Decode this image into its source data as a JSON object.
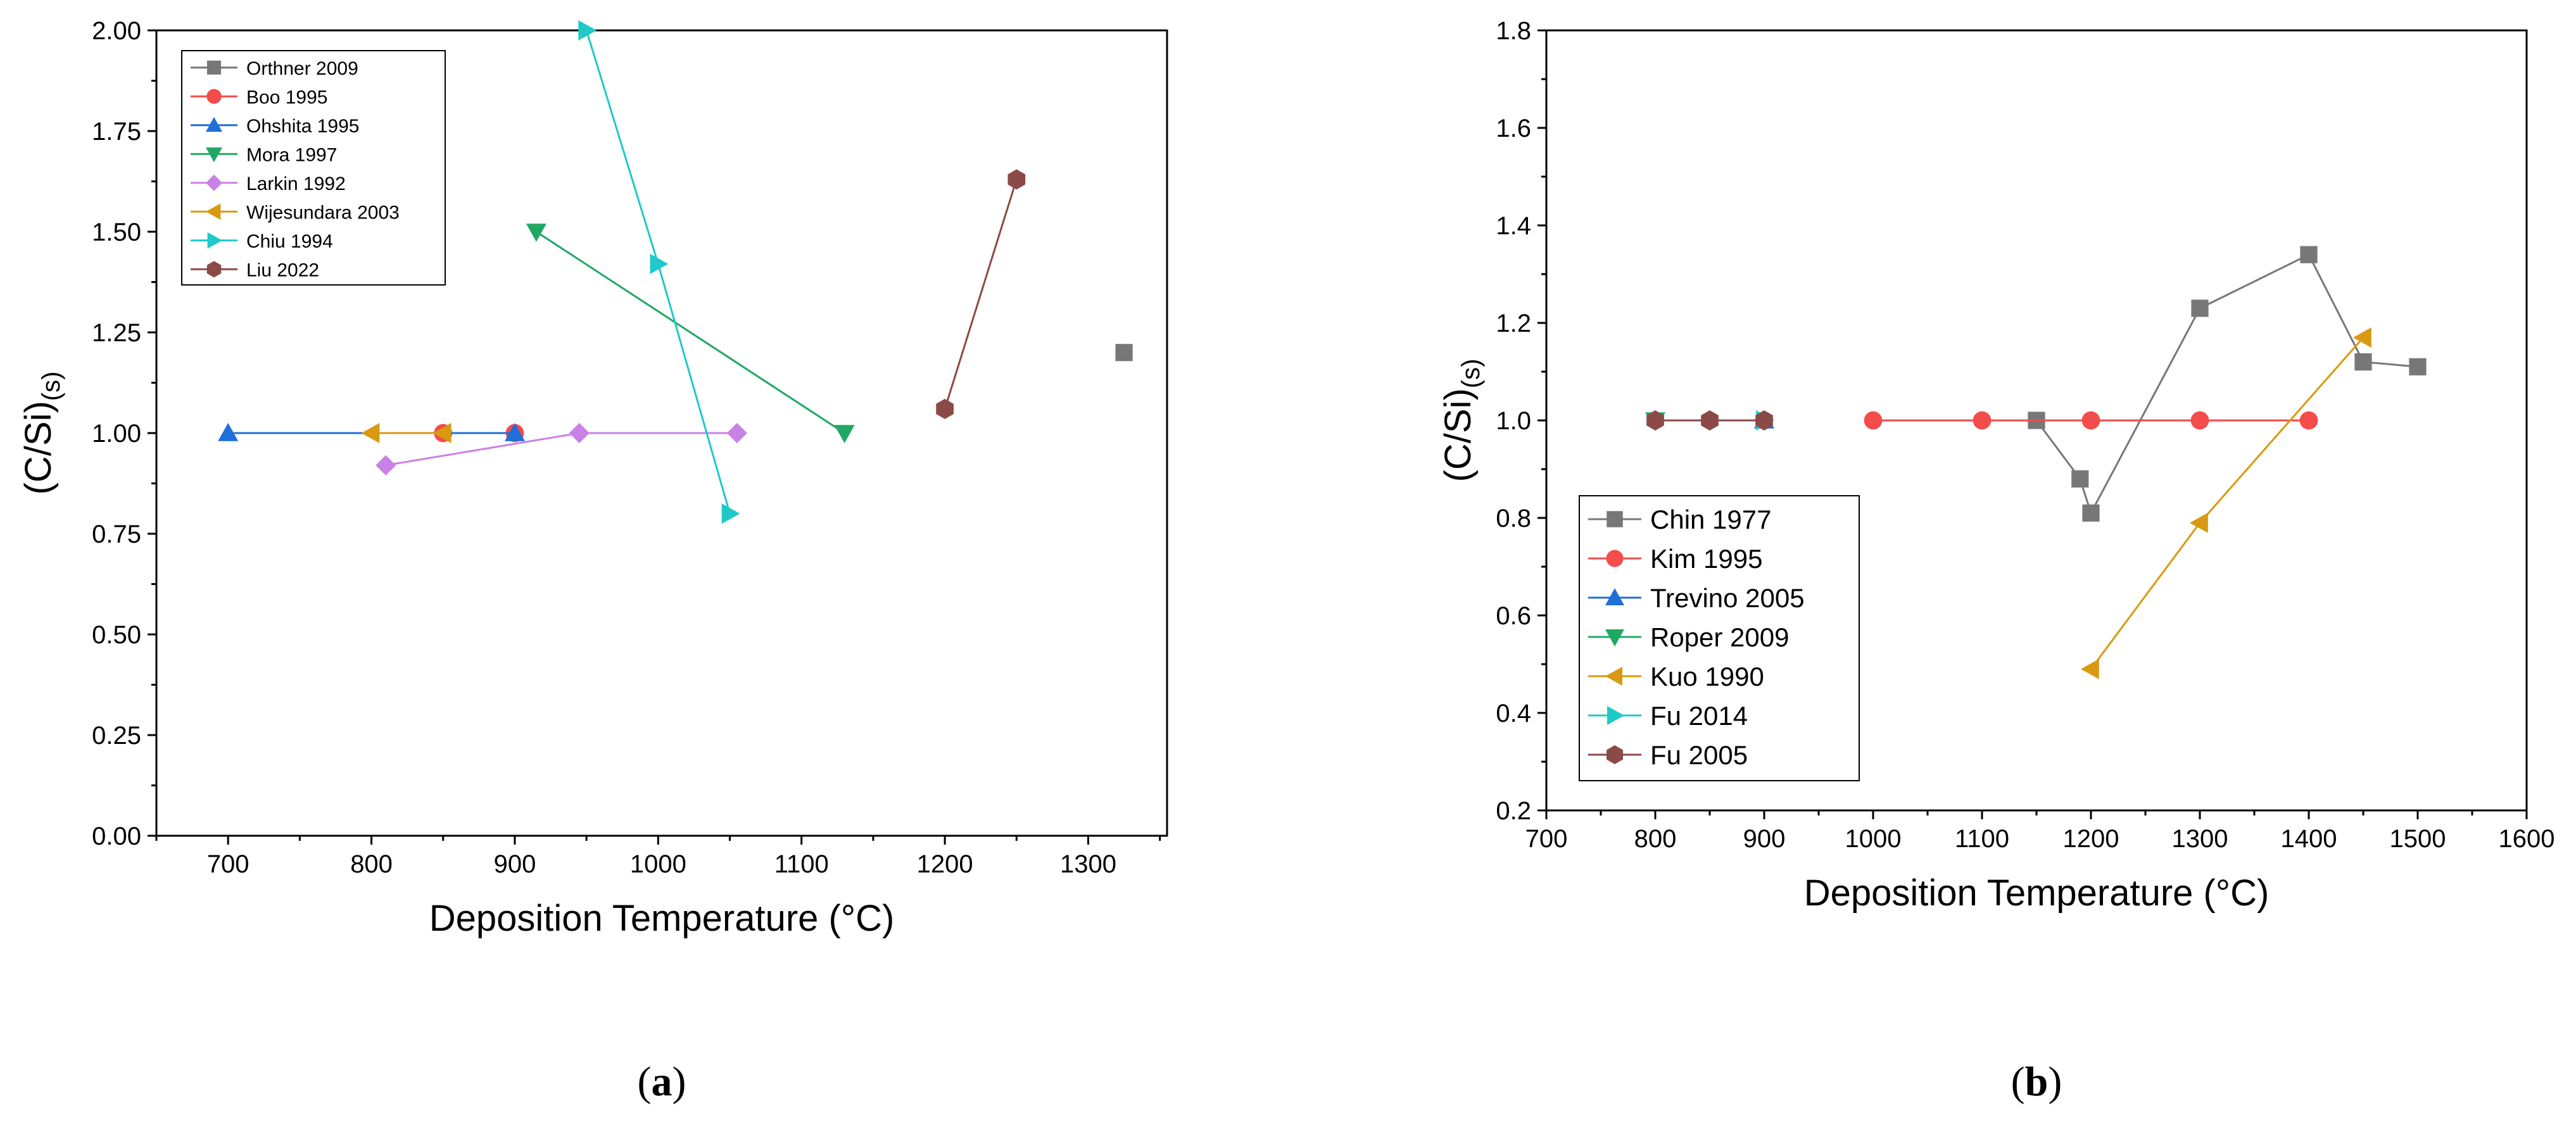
{
  "chart_data": [
    {
      "type": "line",
      "panel_label": "a",
      "xlabel": "Deposition Temperature (°C)",
      "ylabel_main": "(C/Si)",
      "ylabel_sub": "(s)",
      "xlim": [
        650,
        1355
      ],
      "ylim": [
        0,
        2.0
      ],
      "xticks": [
        700,
        800,
        900,
        1000,
        1100,
        1200,
        1300
      ],
      "yticks": [
        "0.00",
        "0.25",
        "0.50",
        "0.75",
        "1.00",
        "1.25",
        "1.50",
        "1.75",
        "2.00"
      ],
      "legend_position": "top-left",
      "grid": false,
      "series": [
        {
          "name": "Orthner 2009",
          "marker": "square",
          "color": "#777777",
          "points": [
            [
              1325,
              1.2
            ]
          ]
        },
        {
          "name": "Boo 1995",
          "marker": "circle",
          "color": "#f44b4b",
          "points": [
            [
              850,
              1.0
            ],
            [
              900,
              1.0
            ]
          ]
        },
        {
          "name": "Ohshita 1995",
          "marker": "triangle-up",
          "color": "#1f6fd8",
          "points": [
            [
              700,
              1.0
            ],
            [
              900,
              1.0
            ]
          ]
        },
        {
          "name": "Mora 1997",
          "marker": "triangle-down",
          "color": "#1fa864",
          "points": [
            [
              915,
              1.5
            ],
            [
              1130,
              1.0
            ]
          ]
        },
        {
          "name": "Larkin 1992",
          "marker": "diamond",
          "color": "#c981e6",
          "points": [
            [
              810,
              0.92
            ],
            [
              945,
              1.0
            ],
            [
              1055,
              1.0
            ]
          ]
        },
        {
          "name": "Wijesundara 2003",
          "marker": "triangle-left",
          "color": "#d99a12",
          "points": [
            [
              800,
              1.0
            ],
            [
              850,
              1.0
            ]
          ]
        },
        {
          "name": "Chiu 1994",
          "marker": "triangle-right",
          "color": "#1fc9c9",
          "points": [
            [
              950,
              2.0
            ],
            [
              1000,
              1.42
            ],
            [
              1050,
              0.8
            ]
          ]
        },
        {
          "name": "Liu 2022",
          "marker": "hexagon",
          "color": "#8b4a48",
          "points": [
            [
              1200,
              1.06
            ],
            [
              1250,
              1.63
            ]
          ]
        }
      ]
    },
    {
      "type": "line",
      "panel_label": "b",
      "xlabel": "Deposition Temperature (°C)",
      "ylabel_main": "(C/Si)",
      "ylabel_sub": "(s)",
      "xlim": [
        700,
        1600
      ],
      "ylim": [
        0.2,
        1.8
      ],
      "xticks": [
        700,
        800,
        900,
        1000,
        1100,
        1200,
        1300,
        1400,
        1500,
        1600
      ],
      "yticks": [
        "0.2",
        "0.4",
        "0.6",
        "0.8",
        "1.0",
        "1.2",
        "1.4",
        "1.6",
        "1.8"
      ],
      "legend_position": "bottom-left",
      "grid": false,
      "series": [
        {
          "name": "Chin 1977",
          "marker": "square",
          "color": "#777777",
          "points": [
            [
              1150,
              1.0
            ],
            [
              1190,
              0.88
            ],
            [
              1200,
              0.81
            ],
            [
              1300,
              1.23
            ],
            [
              1400,
              1.34
            ],
            [
              1450,
              1.12
            ],
            [
              1500,
              1.11
            ]
          ]
        },
        {
          "name": "Kim 1995",
          "marker": "circle",
          "color": "#f44b4b",
          "points": [
            [
              1000,
              1.0
            ],
            [
              1100,
              1.0
            ],
            [
              1200,
              1.0
            ],
            [
              1300,
              1.0
            ],
            [
              1400,
              1.0
            ]
          ]
        },
        {
          "name": "Trevino 2005",
          "marker": "triangle-up",
          "color": "#1f6fd8",
          "points": [
            [
              900,
              1.0
            ]
          ]
        },
        {
          "name": "Roper 2009",
          "marker": "triangle-down",
          "color": "#1fa864",
          "points": [
            [
              800,
              1.0
            ]
          ]
        },
        {
          "name": "Kuo 1990",
          "marker": "triangle-left",
          "color": "#d99a12",
          "points": [
            [
              1200,
              0.49
            ],
            [
              1300,
              0.79
            ],
            [
              1450,
              1.17
            ]
          ]
        },
        {
          "name": "Fu 2014",
          "marker": "triangle-right",
          "color": "#1fc9c9",
          "points": [
            [
              900,
              1.0
            ]
          ]
        },
        {
          "name": "Fu 2005",
          "marker": "hexagon",
          "color": "#8b4a48",
          "points": [
            [
              800,
              1.0
            ],
            [
              850,
              1.0
            ],
            [
              900,
              1.0
            ]
          ]
        }
      ]
    }
  ]
}
